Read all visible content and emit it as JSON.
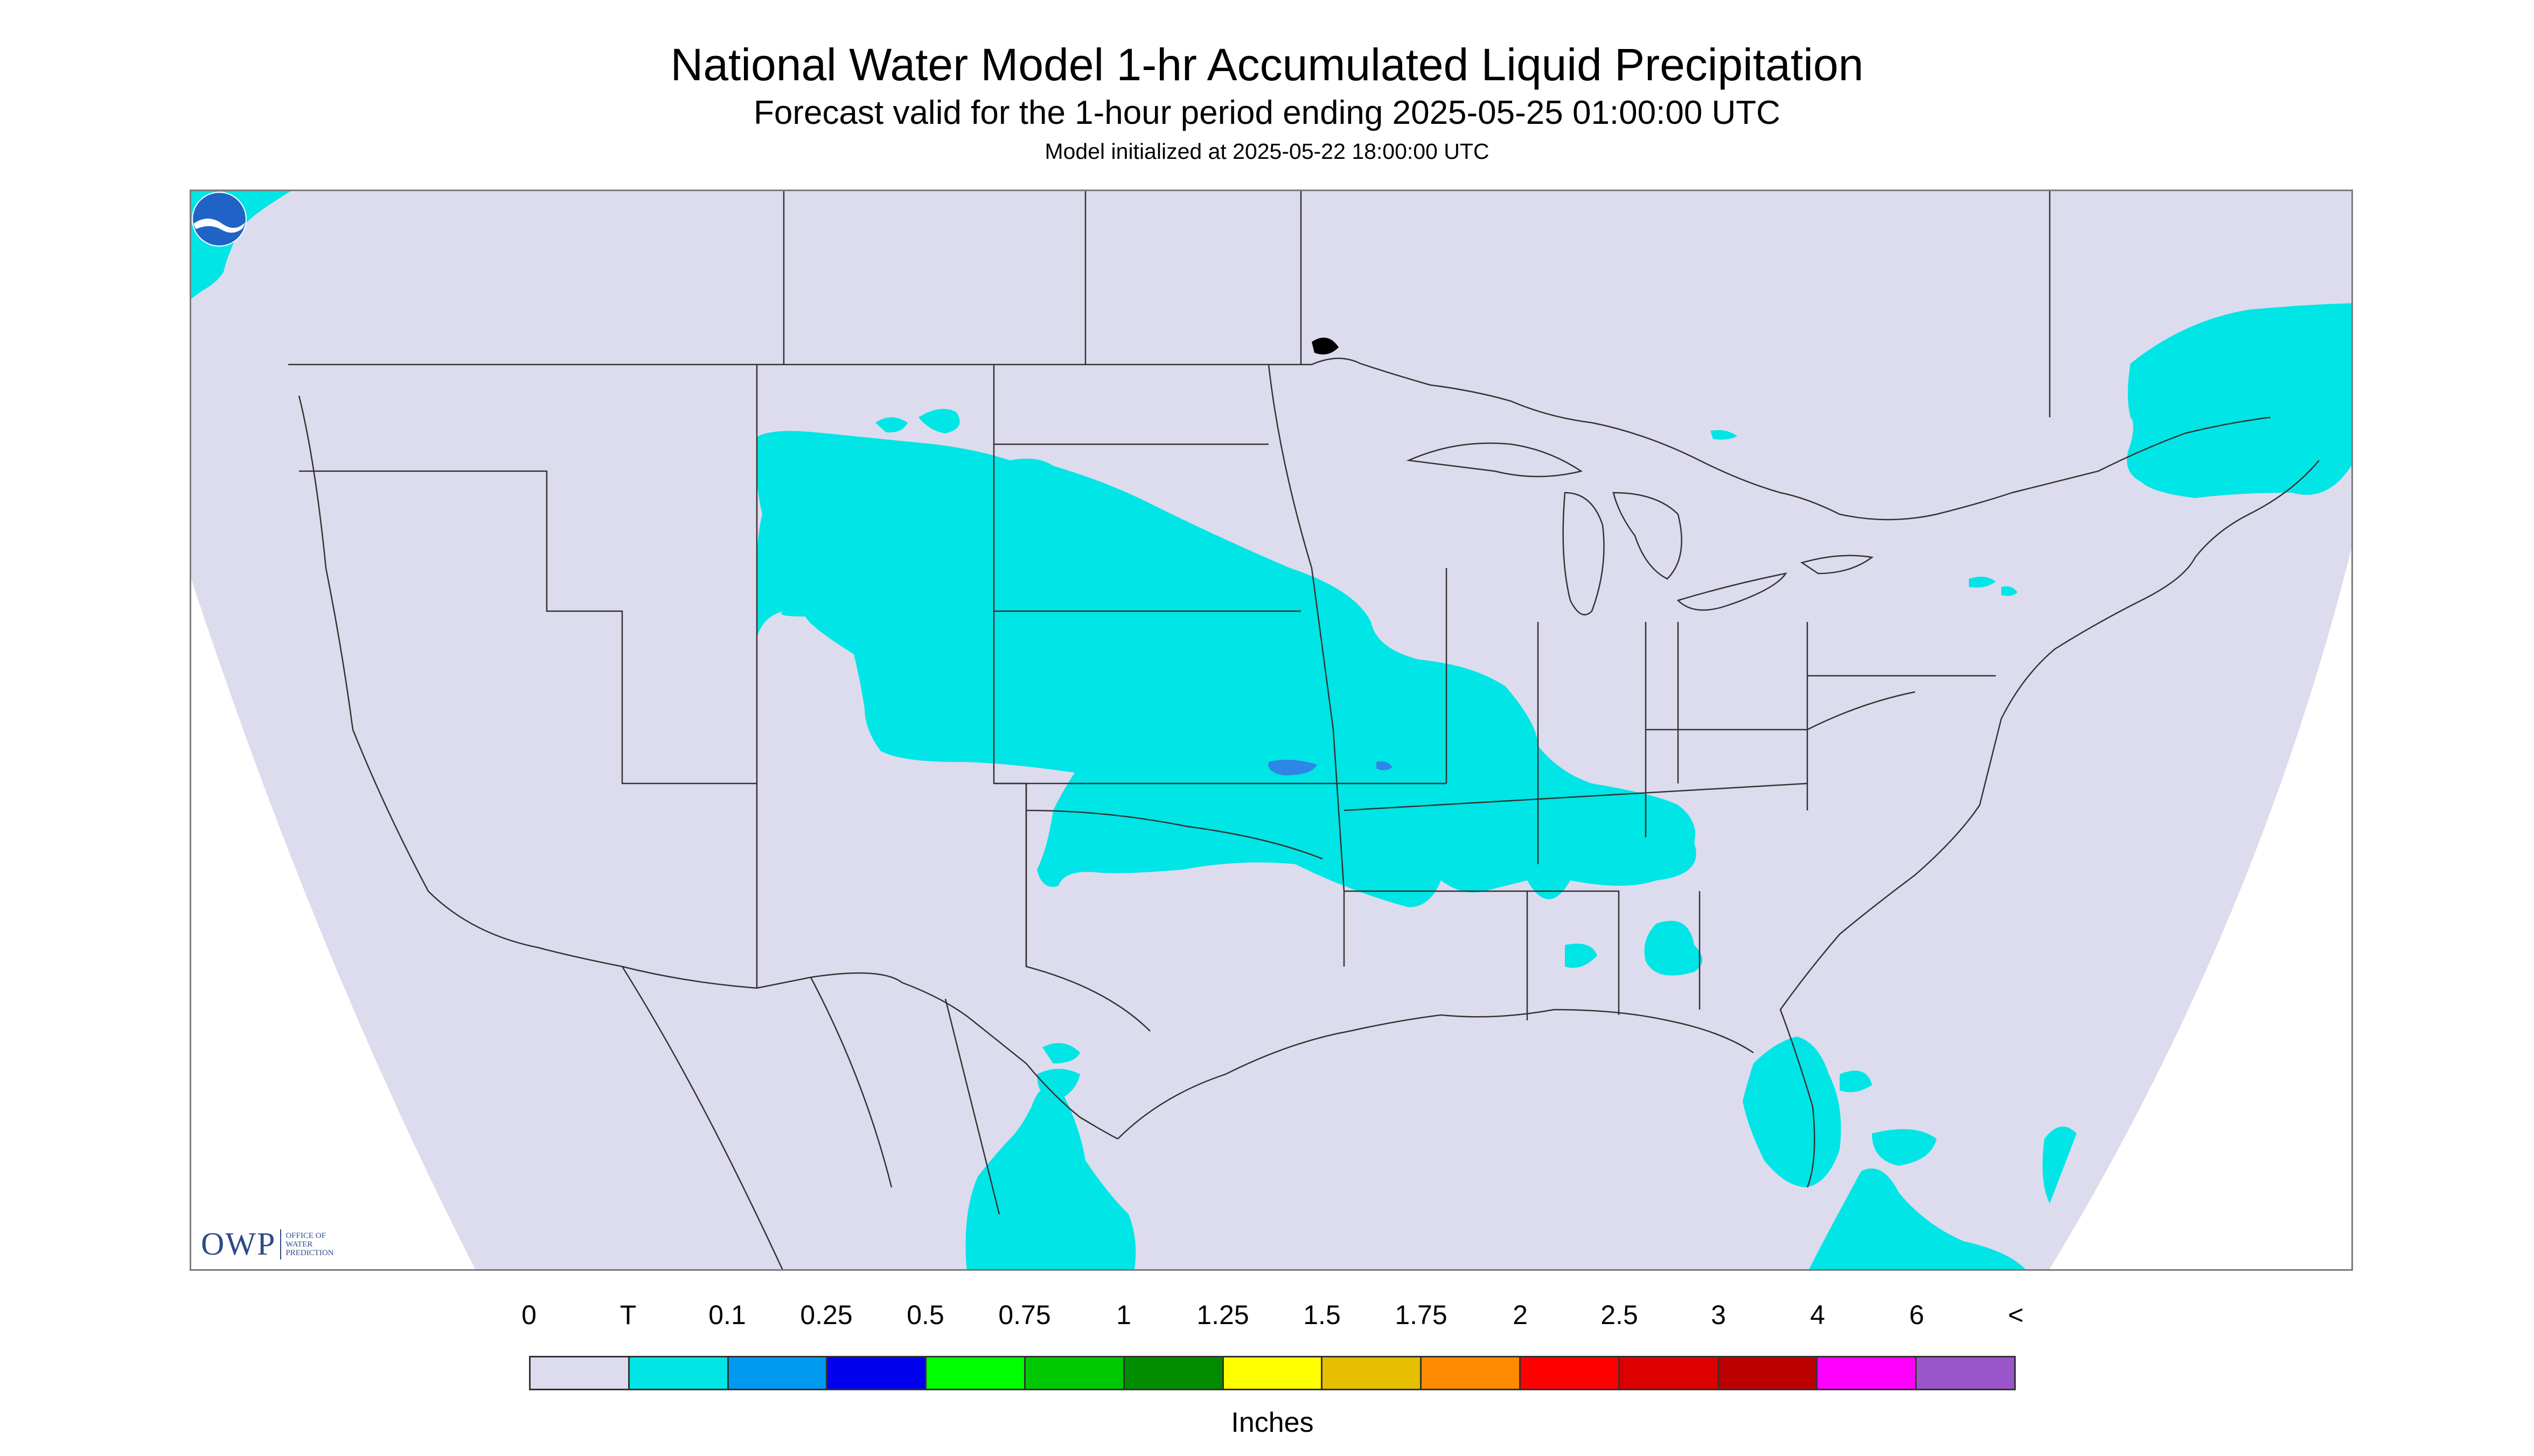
{
  "title": "National Water Model 1-hr Accumulated Liquid Precipitation",
  "subtitle": "Forecast valid for the 1-hour period ending 2025-05-25 01:00:00 UTC",
  "init_text": "Model initialized at 2025-05-22 18:00:00 UTC",
  "logo": {
    "mark": "OWP",
    "line1": "Office of",
    "line2": "Water",
    "line3": "Prediction",
    "icon": "noaa-logo-icon"
  },
  "colors": {
    "background_domain": "#dcdcee",
    "outside_domain": "#ffffff",
    "boundaries": "#333333",
    "trace_precip": "#00e5e5",
    "light_precip": "#2f86e6"
  },
  "legend": {
    "labels": [
      "0",
      "T",
      "0.1",
      "0.25",
      "0.5",
      "0.75",
      "1",
      "1.25",
      "1.5",
      "1.75",
      "2",
      "2.5",
      "3",
      "4",
      "6",
      "<"
    ],
    "colors": [
      "#dcdcee",
      "#00e5e5",
      "#0099f0",
      "#0000ee",
      "#00ff00",
      "#00c800",
      "#008c00",
      "#ffff00",
      "#e6c000",
      "#ff8c00",
      "#ff0000",
      "#dc0000",
      "#bc0000",
      "#ff00ff",
      "#9955c9"
    ],
    "unit": "Inches"
  }
}
